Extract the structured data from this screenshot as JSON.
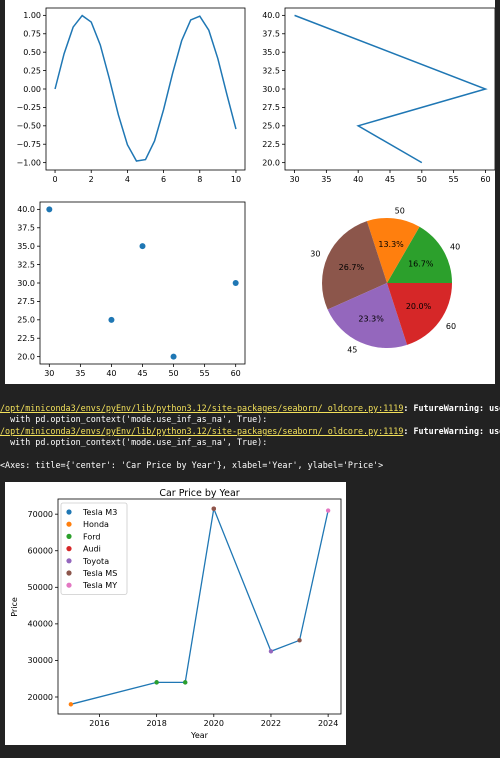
{
  "chart_data": [
    {
      "type": "line",
      "x": [
        0,
        0.5,
        1,
        1.5,
        2,
        2.5,
        3,
        3.5,
        4,
        4.5,
        5,
        5.5,
        6,
        6.5,
        7,
        7.5,
        8,
        8.5,
        9,
        9.5,
        10
      ],
      "y": [
        0,
        0.479,
        0.841,
        0.997,
        0.909,
        0.598,
        0.141,
        -0.351,
        -0.757,
        -0.978,
        -0.959,
        -0.706,
        -0.279,
        0.215,
        0.657,
        0.938,
        0.989,
        0.798,
        0.412,
        -0.075,
        -0.544
      ],
      "xticks": [
        "0",
        "2",
        "4",
        "6",
        "8",
        "10"
      ],
      "yticks": [
        "1.00",
        "0.75",
        "0.50",
        "0.25",
        "0.00",
        "−0.25",
        "−0.50",
        "−0.75",
        "−1.00"
      ],
      "xlim": [
        -0.5,
        10.5
      ],
      "ylim": [
        -1.1,
        1.1
      ]
    },
    {
      "type": "line",
      "x": [
        30,
        60,
        40,
        50
      ],
      "y": [
        40,
        30,
        25,
        20
      ],
      "xticks": [
        "30",
        "35",
        "40",
        "45",
        "50",
        "55",
        "60"
      ],
      "yticks": [
        "40.0",
        "37.5",
        "35.0",
        "32.5",
        "30.0",
        "27.5",
        "25.0",
        "22.5",
        "20.0"
      ],
      "xlim": [
        28.5,
        61.5
      ],
      "ylim": [
        19,
        41
      ]
    },
    {
      "type": "scatter",
      "x": [
        30,
        45,
        40,
        50,
        60
      ],
      "y": [
        40,
        35,
        25,
        20,
        30
      ],
      "xticks": [
        "30",
        "35",
        "40",
        "45",
        "50",
        "55",
        "60"
      ],
      "yticks": [
        "40.0",
        "37.5",
        "35.0",
        "32.5",
        "30.0",
        "27.5",
        "25.0",
        "22.5",
        "20.0"
      ],
      "xlim": [
        28.5,
        61.5
      ],
      "ylim": [
        19,
        41
      ]
    },
    {
      "type": "pie",
      "labels": [
        "40",
        "50",
        "30",
        "45",
        "60"
      ],
      "values": [
        25,
        20,
        40,
        35,
        30
      ],
      "pct_labels": [
        "16.7%",
        "13.3%",
        "26.7%",
        "23.3%",
        "20.0%"
      ],
      "colors": [
        "#2ca02c",
        "#ff7f0e",
        "#8c564b",
        "#9467bd",
        "#d62728"
      ]
    },
    {
      "type": "line",
      "title": "Car Price by Year",
      "xlabel": "Year",
      "ylabel": "Price",
      "x": [
        2015,
        2018,
        2019,
        2020,
        2022,
        2023,
        2024
      ],
      "y": [
        18000,
        24000,
        24000,
        71500,
        32500,
        35500,
        71000
      ],
      "series": [
        {
          "name": "Tesla M3",
          "color": "#1f77b4",
          "points": [
            [
              2018,
              24000
            ],
            [
              2019,
              24000
            ]
          ]
        },
        {
          "name": "Honda",
          "color": "#ff7f0e",
          "points": [
            [
              2015,
              18000
            ]
          ]
        },
        {
          "name": "Ford",
          "color": "#2ca02c",
          "points": [
            [
              2018,
              24000
            ],
            [
              2019,
              24000
            ]
          ]
        },
        {
          "name": "Audi",
          "color": "#d62728",
          "points": [
            [
              2020,
              71500
            ]
          ]
        },
        {
          "name": "Toyota",
          "color": "#9467bd",
          "points": [
            [
              2022,
              32500
            ]
          ]
        },
        {
          "name": "Tesla MS",
          "color": "#8c564b",
          "points": [
            [
              2020,
              71500
            ],
            [
              2023,
              35500
            ]
          ]
        },
        {
          "name": "Tesla MY",
          "color": "#e377c2",
          "points": [
            [
              2024,
              71000
            ]
          ]
        }
      ],
      "xticks": [
        "2016",
        "2018",
        "2020",
        "2022",
        "2024"
      ],
      "yticks": [
        "70000",
        "60000",
        "50000",
        "40000",
        "30000",
        "20000"
      ],
      "xlim": [
        2014.55,
        2024.45
      ],
      "ylim": [
        15350,
        74150
      ],
      "legend": "upper left"
    }
  ],
  "output": {
    "warn1_path": "/opt/miniconda3/envs/pyEnv/lib/python3.12/site-packages/seaborn/_oldcore.py:1119",
    "warn1_rest": ": FutureWarning: use_inf_as_na option is deprecated and will be removed in a future version. Convert inf values to NaN before operating instead.",
    "warn1_line2": "  with pd.option_context('mode.use_inf_as_na', True):",
    "warn2_path": "/opt/miniconda3/envs/pyEnv/lib/python3.12/site-packages/seaborn/_oldcore.py:1119",
    "warn2_rest": ": FutureWarning: use_inf_as_na option is deprecated and will be removed in a future version. Convert inf values to NaN before operating instead.",
    "warn2_line2": "  with pd.option_context('mode.use_inf_as_na', True):",
    "axes_repr": "<Axes: title={'center': 'Car Price by Year'}, xlabel='Year', ylabel='Price'>"
  }
}
